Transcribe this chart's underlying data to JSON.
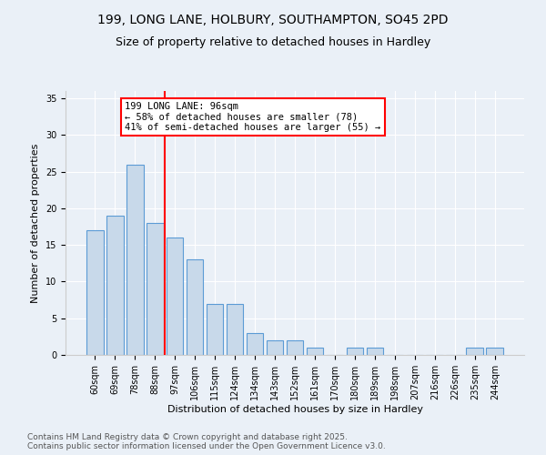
{
  "title1": "199, LONG LANE, HOLBURY, SOUTHAMPTON, SO45 2PD",
  "title2": "Size of property relative to detached houses in Hardley",
  "xlabel": "Distribution of detached houses by size in Hardley",
  "ylabel": "Number of detached properties",
  "categories": [
    "60sqm",
    "69sqm",
    "78sqm",
    "88sqm",
    "97sqm",
    "106sqm",
    "115sqm",
    "124sqm",
    "134sqm",
    "143sqm",
    "152sqm",
    "161sqm",
    "170sqm",
    "180sqm",
    "189sqm",
    "198sqm",
    "207sqm",
    "216sqm",
    "226sqm",
    "235sqm",
    "244sqm"
  ],
  "values": [
    17,
    19,
    26,
    18,
    16,
    13,
    7,
    7,
    3,
    2,
    2,
    1,
    0,
    1,
    1,
    0,
    0,
    0,
    0,
    1,
    1
  ],
  "bar_color": "#c8d9ea",
  "bar_edge_color": "#5b9bd5",
  "red_line_index": 4,
  "annotation_text": "199 LONG LANE: 96sqm\n← 58% of detached houses are smaller (78)\n41% of semi-detached houses are larger (55) →",
  "annotation_box_color": "white",
  "annotation_box_edge_color": "red",
  "ylim": [
    0,
    36
  ],
  "yticks": [
    0,
    5,
    10,
    15,
    20,
    25,
    30,
    35
  ],
  "footer1": "Contains HM Land Registry data © Crown copyright and database right 2025.",
  "footer2": "Contains public sector information licensed under the Open Government Licence v3.0.",
  "bg_color": "#eaf0f7",
  "plot_bg_color": "#eaf0f7",
  "title_fontsize": 10,
  "subtitle_fontsize": 9,
  "axis_label_fontsize": 8,
  "tick_fontsize": 7,
  "annotation_fontsize": 7.5,
  "footer_fontsize": 6.5
}
